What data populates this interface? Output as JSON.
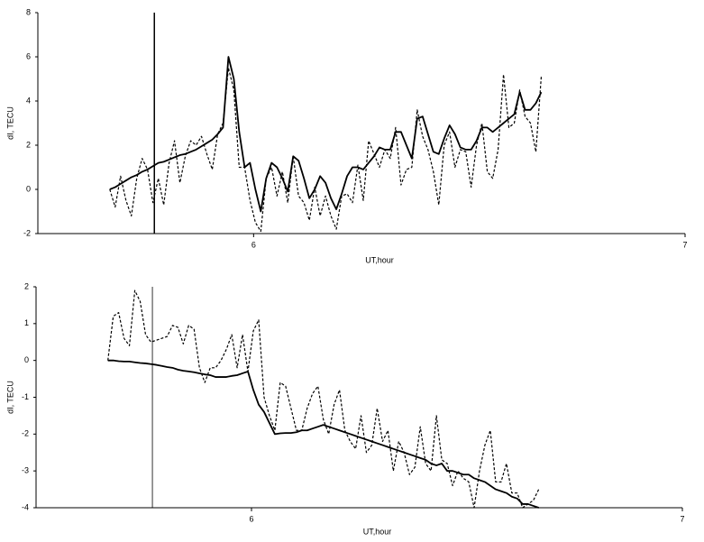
{
  "chart_data": [
    {
      "type": "line",
      "xlabel": "UT,hour",
      "ylabel": "dI, TECU",
      "xlim": [
        5.5,
        7
      ],
      "xticks": [
        6,
        7
      ],
      "ylim": [
        -2,
        8
      ],
      "yticks": [
        -2,
        0,
        2,
        4,
        6,
        8
      ],
      "vline": 5.77,
      "x": [
        5.6667,
        5.6792,
        5.6917,
        5.7042,
        5.7167,
        5.7292,
        5.7417,
        5.7542,
        5.7667,
        5.7792,
        5.7917,
        5.8042,
        5.8167,
        5.8292,
        5.8417,
        5.8542,
        5.8667,
        5.8792,
        5.8917,
        5.9042,
        5.9167,
        5.9292,
        5.9417,
        5.9542,
        5.9667,
        5.9792,
        5.9917,
        6.0042,
        6.0167,
        6.0292,
        6.0417,
        6.0542,
        6.0667,
        6.0792,
        6.0917,
        6.1042,
        6.1167,
        6.1292,
        6.1417,
        6.1542,
        6.1667,
        6.1792,
        6.1917,
        6.2042,
        6.2167,
        6.2292,
        6.2417,
        6.2542,
        6.2667,
        6.2792,
        6.2917,
        6.3042,
        6.3167,
        6.3292,
        6.3417,
        6.3542,
        6.3667,
        6.3792,
        6.3917,
        6.4042,
        6.4167,
        6.4292,
        6.4417,
        6.4542,
        6.4667,
        6.4792,
        6.4917,
        6.5042,
        6.5167,
        6.5292,
        6.5417,
        6.5542,
        6.5667,
        6.5792,
        6.5917,
        6.6042,
        6.6167,
        6.6292,
        6.6417,
        6.6542,
        6.6667
      ],
      "series": [
        {
          "color": "#000000",
          "dash": true,
          "values": [
            0,
            -0.8,
            0.6,
            -0.5,
            -1.2,
            0.5,
            1.4,
            0.9,
            -0.6,
            0.5,
            -0.7,
            1.2,
            2.2,
            0.3,
            1.5,
            2.2,
            2.0,
            2.4,
            1.6,
            0.9,
            2.5,
            3,
            5.5,
            4.5,
            1.0,
            1.0,
            -0.5,
            -1.5,
            -1.9,
            0.5,
            1.0,
            -0.3,
            0.8,
            -0.6,
            1.5,
            -0.3,
            -0.6,
            -1.4,
            0.1,
            -1.2,
            -0.3,
            -1.2,
            -1.8,
            -0.3,
            -0.2,
            -0.6,
            1.1,
            -0.5,
            2.2,
            1.6,
            1.0,
            1.8,
            1.4,
            2.8,
            0.2,
            0.9,
            1.0,
            3.6,
            2.4,
            1.8,
            0.8,
            -0.7,
            2.0,
            2.6,
            1.0,
            1.8,
            1.7,
            0.1,
            2.0,
            3.0,
            0.8,
            0.5,
            1.8,
            5.2,
            2.8,
            3.0,
            4.5,
            3.3,
            3.0,
            1.7,
            5.1
          ]
        },
        {
          "color": "#000000",
          "dash": false,
          "values": [
            0,
            0.1,
            0.25,
            0.4,
            0.55,
            0.65,
            0.8,
            0.9,
            1.05,
            1.2,
            1.25,
            1.35,
            1.45,
            1.55,
            1.6,
            1.7,
            1.8,
            1.95,
            2.1,
            2.25,
            2.5,
            2.8,
            6.0,
            5.0,
            2.6,
            1.0,
            1.2,
            0,
            -1.0,
            0.5,
            1.2,
            1.0,
            0.5,
            -0.1,
            1.5,
            1.3,
            0.5,
            -0.4,
            0,
            0.6,
            0.3,
            -0.4,
            -0.9,
            -0.2,
            0.6,
            1.0,
            1.0,
            0.9,
            1.2,
            1.5,
            1.9,
            1.8,
            1.8,
            2.6,
            2.6,
            2.0,
            1.4,
            3.2,
            3.3,
            2.5,
            1.7,
            1.6,
            2.3,
            2.9,
            2.5,
            1.9,
            1.8,
            1.8,
            2.2,
            2.8,
            2.8,
            2.6,
            2.8,
            3.0,
            3.2,
            3.4,
            4.4,
            3.6,
            3.6,
            3.9,
            4.4
          ]
        }
      ]
    },
    {
      "type": "line",
      "xlabel": "UT,hour",
      "ylabel": "dI, TECU",
      "xlim": [
        5.5,
        7
      ],
      "xticks": [
        6,
        7
      ],
      "ylim": [
        -4,
        2
      ],
      "yticks": [
        -4,
        -3,
        -2,
        -1,
        0,
        1,
        2
      ],
      "vline": 5.77,
      "x": [
        5.6667,
        5.6792,
        5.6917,
        5.7042,
        5.7167,
        5.7292,
        5.7417,
        5.7542,
        5.7667,
        5.7792,
        5.7917,
        5.8042,
        5.8167,
        5.8292,
        5.8417,
        5.8542,
        5.8667,
        5.8792,
        5.8917,
        5.9042,
        5.9167,
        5.9292,
        5.9417,
        5.9542,
        5.9667,
        5.9792,
        5.9917,
        6.0042,
        6.0167,
        6.0292,
        6.0417,
        6.0542,
        6.0667,
        6.0792,
        6.0917,
        6.1042,
        6.1167,
        6.1292,
        6.1417,
        6.1542,
        6.1667,
        6.1792,
        6.1917,
        6.2042,
        6.2167,
        6.2292,
        6.2417,
        6.2542,
        6.2667,
        6.2792,
        6.2917,
        6.3042,
        6.3167,
        6.3292,
        6.3417,
        6.3542,
        6.3667,
        6.3792,
        6.3917,
        6.4042,
        6.4167,
        6.4292,
        6.4417,
        6.4542,
        6.4667,
        6.4792,
        6.4917,
        6.5042,
        6.5167,
        6.5292,
        6.5417,
        6.5542,
        6.5667,
        6.5792,
        6.5917,
        6.6042,
        6.6167,
        6.6292,
        6.6417,
        6.6542,
        6.6667
      ],
      "series": [
        {
          "color": "#000000",
          "dash": true,
          "values": [
            0,
            1.2,
            1.3,
            0.6,
            0.4,
            1.9,
            1.6,
            0.7,
            0.5,
            0.55,
            0.6,
            0.65,
            0.95,
            0.9,
            0.45,
            0.95,
            0.85,
            -0.2,
            -0.6,
            -0.2,
            -0.2,
            0,
            0.3,
            0.7,
            -0.2,
            0.7,
            -0.3,
            0.8,
            1.1,
            -1.0,
            -1.5,
            -1.9,
            -0.6,
            -0.7,
            -1.3,
            -1.9,
            -1.9,
            -1.3,
            -0.9,
            -0.7,
            -1.6,
            -2.0,
            -1.2,
            -0.8,
            -1.9,
            -2.2,
            -2.4,
            -1.5,
            -2.5,
            -2.3,
            -1.3,
            -2.2,
            -1.9,
            -3.0,
            -2.2,
            -2.5,
            -3.1,
            -2.9,
            -1.8,
            -2.8,
            -3.0,
            -1.5,
            -2.7,
            -2.8,
            -3.4,
            -3.0,
            -3.2,
            -3.3,
            -4.0,
            -3.0,
            -2.3,
            -1.9,
            -3.3,
            -3.3,
            -2.8,
            -3.6,
            -3.6,
            -4.0,
            -3.9,
            -3.8,
            -3.5
          ]
        },
        {
          "color": "#000000",
          "dash": false,
          "values": [
            0,
            0,
            -0.02,
            -0.03,
            -0.03,
            -0.05,
            -0.07,
            -0.08,
            -0.1,
            -0.12,
            -0.15,
            -0.18,
            -0.2,
            -0.25,
            -0.28,
            -0.3,
            -0.32,
            -0.35,
            -0.38,
            -0.4,
            -0.45,
            -0.45,
            -0.45,
            -0.42,
            -0.4,
            -0.35,
            -0.3,
            -0.8,
            -1.2,
            -1.4,
            -1.7,
            -2.0,
            -1.98,
            -1.97,
            -1.97,
            -1.95,
            -1.9,
            -1.9,
            -1.85,
            -1.8,
            -1.75,
            -1.8,
            -1.85,
            -1.9,
            -1.95,
            -2.0,
            -2.05,
            -2.1,
            -2.15,
            -2.2,
            -2.25,
            -2.3,
            -2.35,
            -2.4,
            -2.45,
            -2.5,
            -2.55,
            -2.6,
            -2.65,
            -2.7,
            -2.8,
            -2.85,
            -2.8,
            -3.0,
            -3.0,
            -3.05,
            -3.1,
            -3.1,
            -3.2,
            -3.25,
            -3.3,
            -3.4,
            -3.5,
            -3.55,
            -3.6,
            -3.7,
            -3.75,
            -3.9,
            -3.9,
            -3.95,
            -4.0
          ]
        }
      ]
    }
  ]
}
